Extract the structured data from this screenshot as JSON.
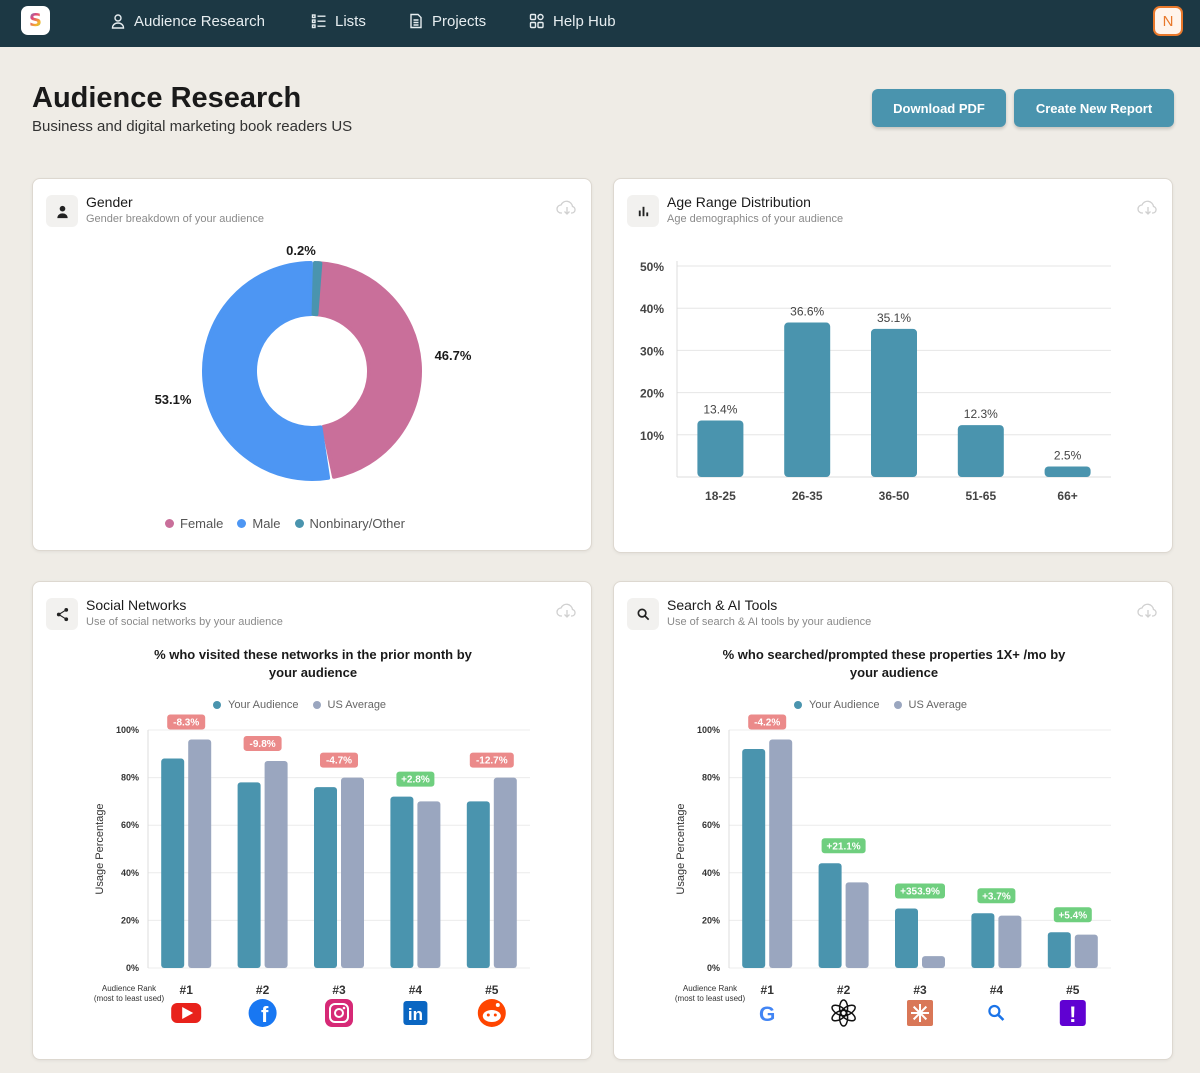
{
  "nav": {
    "logo_letter": "S",
    "items": [
      {
        "label": "Audience Research",
        "icon": "person-icon"
      },
      {
        "label": "Lists",
        "icon": "list-icon"
      },
      {
        "label": "Projects",
        "icon": "document-icon"
      },
      {
        "label": "Help Hub",
        "icon": "grid-icon"
      }
    ],
    "avatar": "N"
  },
  "header": {
    "title": "Audience Research",
    "subtitle": "Business and digital marketing book readers US",
    "download_label": "Download PDF",
    "create_label": "Create New Report"
  },
  "colors": {
    "teal": "#4a94ae",
    "blue": "#4d96f3",
    "pink": "#c96f9a",
    "gray": "#9aa6bf",
    "neg_badge": "#eb8a8a",
    "pos_badge": "#6fcf7f",
    "nav_bg": "#1c3844"
  },
  "gender": {
    "title": "Gender",
    "subtitle": "Gender breakdown of your audience",
    "legend": [
      "Female",
      "Male",
      "Nonbinary/Other"
    ],
    "chart_data": {
      "type": "pie",
      "labels": [
        "Female",
        "Male",
        "Nonbinary/Other"
      ],
      "values": [
        46.7,
        53.1,
        0.2
      ],
      "value_labels": [
        "46.7%",
        "53.1%",
        "0.2%"
      ]
    }
  },
  "age": {
    "title": "Age Range Distribution",
    "subtitle": "Age demographics of your audience",
    "chart_data": {
      "type": "bar",
      "categories": [
        "18-25",
        "26-35",
        "36-50",
        "51-65",
        "66+"
      ],
      "values": [
        13.4,
        36.6,
        35.1,
        12.3,
        2.5
      ],
      "value_labels": [
        "13.4%",
        "36.6%",
        "35.1%",
        "12.3%",
        "2.5%"
      ],
      "yticks": [
        "10%",
        "20%",
        "30%",
        "40%",
        "50%"
      ],
      "ylim": [
        0,
        50
      ]
    }
  },
  "social": {
    "title": "Social Networks",
    "subtitle": "Use of social networks by your audience",
    "heading_line1": "% who visited these networks in the prior month by",
    "heading_line2": "your audience",
    "legend": [
      "Your Audience",
      "US Average"
    ],
    "rank_label_1": "Audience Rank",
    "rank_label_2": "(most to least used)",
    "chart_data": {
      "type": "bar",
      "categories": [
        "#1",
        "#2",
        "#3",
        "#4",
        "#5"
      ],
      "icons": [
        "youtube-icon",
        "facebook-icon",
        "instagram-icon",
        "linkedin-icon",
        "reddit-icon"
      ],
      "series": [
        {
          "name": "Your Audience",
          "values": [
            88,
            78,
            76,
            72,
            70
          ]
        },
        {
          "name": "US Average",
          "values": [
            96,
            87,
            80,
            70,
            80
          ]
        }
      ],
      "badges": [
        "-8.3%",
        "-9.8%",
        "-4.7%",
        "+2.8%",
        "-12.7%"
      ],
      "ylabel": "Usage Percentage",
      "yticks": [
        "0%",
        "20%",
        "40%",
        "60%",
        "80%",
        "100%"
      ],
      "ylim": [
        0,
        100
      ]
    }
  },
  "search": {
    "title": "Search & AI Tools",
    "subtitle": "Use of search & AI tools by your audience",
    "heading_line1": "% who searched/prompted these properties 1X+ /mo by",
    "heading_line2": "your audience",
    "legend": [
      "Your Audience",
      "US Average"
    ],
    "rank_label_1": "Audience Rank",
    "rank_label_2": "(most to least used)",
    "chart_data": {
      "type": "bar",
      "categories": [
        "#1",
        "#2",
        "#3",
        "#4",
        "#5"
      ],
      "icons": [
        "google-icon",
        "chatgpt-icon",
        "claude-icon",
        "search-icon",
        "yahoo-icon"
      ],
      "series": [
        {
          "name": "Your Audience",
          "values": [
            92,
            44,
            25,
            23,
            15
          ]
        },
        {
          "name": "US Average",
          "values": [
            96,
            36,
            5,
            22,
            14
          ]
        }
      ],
      "badges": [
        "-4.2%",
        "+21.1%",
        "+353.9%",
        "+3.7%",
        "+5.4%"
      ],
      "ylabel": "Usage Percentage",
      "yticks": [
        "0%",
        "20%",
        "40%",
        "60%",
        "80%",
        "100%"
      ],
      "ylim": [
        0,
        100
      ]
    }
  }
}
